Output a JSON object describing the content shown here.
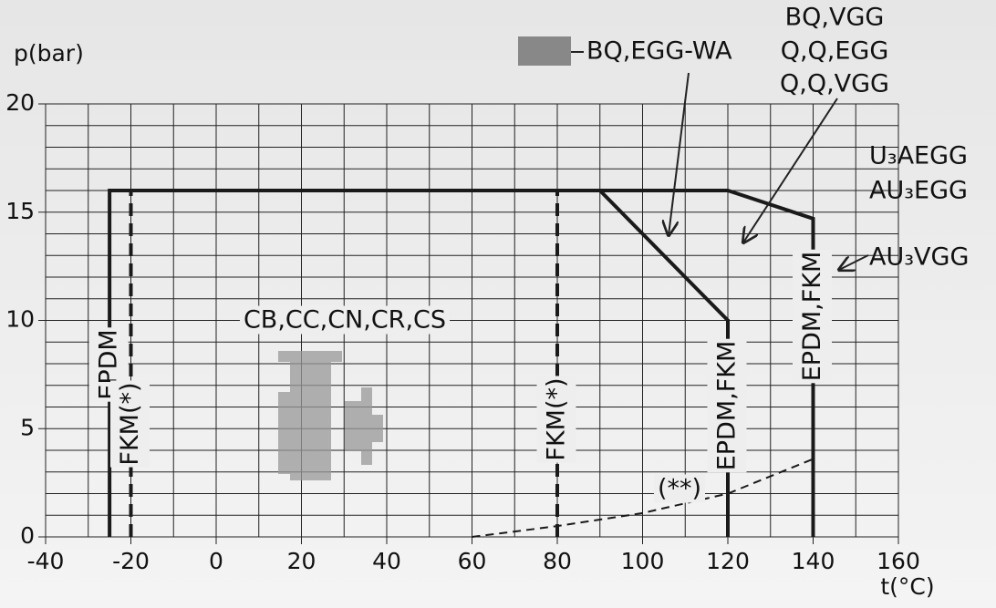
{
  "chart_data": {
    "type": "line",
    "y_label": "p(bar)",
    "x_label": "t(°C)",
    "xlim": [
      -40,
      160
    ],
    "xticks": [
      -40,
      -20,
      0,
      20,
      40,
      60,
      80,
      100,
      120,
      140,
      160
    ],
    "ylim": [
      0,
      20
    ],
    "yticks": [
      0,
      5,
      10,
      15,
      20
    ],
    "grid": true,
    "x_grid_step": 10,
    "y_grid_step": 1,
    "series": [
      {
        "color": "#1a1a1a",
        "dash": false,
        "x": [
          -25,
          -25,
          120,
          140,
          140
        ],
        "values": [
          0,
          16,
          16,
          14.7,
          0
        ]
      },
      {
        "color": "#1a1a1a",
        "dash": false,
        "x": [
          90,
          120,
          120
        ],
        "values": [
          16,
          10,
          0
        ]
      },
      {
        "color": "#1a1a1a",
        "dash": true,
        "x": [
          -20,
          -20
        ],
        "values": [
          0,
          16
        ]
      },
      {
        "color": "#1a1a1a",
        "dash": true,
        "x": [
          80,
          80
        ],
        "values": [
          0,
          16
        ]
      },
      {
        "color": "#1a1a1a",
        "dash": true,
        "thin": true,
        "x": [
          60,
          80,
          100,
          120,
          140
        ],
        "values": [
          0,
          0.5,
          1.1,
          2,
          3.6
        ]
      }
    ],
    "annotations": [
      "CB,CC,CN,CR,CS",
      "BQ,EGG-WA",
      "BQ,VGG",
      "Q,Q,EGG",
      "Q,Q,VGG",
      "U₃AEGG",
      "AU₃EGG",
      "AU₃VGG",
      "(**)",
      "EPDM",
      "FKM(*)",
      "FKM(*)",
      "EPDM,FKM",
      "EPDM,FKM"
    ]
  }
}
